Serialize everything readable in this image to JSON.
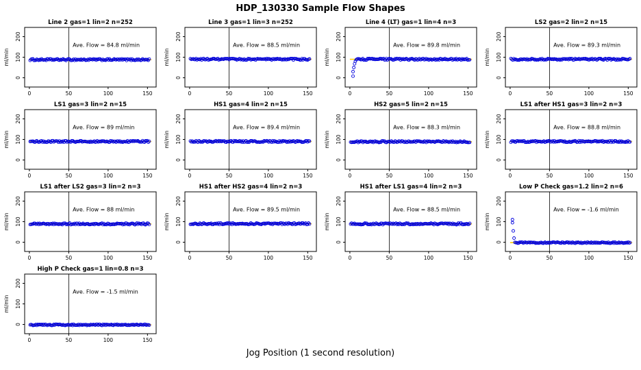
{
  "chart_data": {
    "type": "scatter",
    "title": "HDP_130330  Sample Flow Shapes",
    "xlabel": "Jog Position (1 second resolution)",
    "ylabel": "ml/min",
    "xlim": [
      -6,
      161
    ],
    "ylim": [
      -45,
      245
    ],
    "xticks": [
      0,
      50,
      100,
      150
    ],
    "yticks": [
      0,
      100,
      200
    ],
    "vline_x": 50,
    "point_color": "#0000dd",
    "mean_line_color": "#ffcc00",
    "panels": [
      {
        "title": "Line 2 gas=1 lin=2 n=252",
        "ave_label": "Ave. Flow =  84.8  ml/min",
        "ave_flow": 84.8,
        "flat_y": 88,
        "flat_x_start": 1,
        "flat_x_end": 153,
        "jitter": 4,
        "transient_points": []
      },
      {
        "title": "Line 3 gas=1 lin=3 n=252",
        "ave_label": "Ave. Flow =  88.5  ml/min",
        "ave_flow": 88.5,
        "flat_y": 90,
        "flat_x_start": 1,
        "flat_x_end": 153,
        "jitter": 4,
        "transient_points": []
      },
      {
        "title": "Line 4 (LT) gas=1 lin=4 n=3",
        "ave_label": "Ave. Flow =  89.8  ml/min",
        "ave_flow": 89.8,
        "flat_y": 90,
        "flat_x_start": 8,
        "flat_x_end": 153,
        "jitter": 4,
        "transient_points": [
          [
            4,
            8
          ],
          [
            4,
            30
          ],
          [
            5,
            50
          ],
          [
            6,
            68
          ],
          [
            7,
            80
          ]
        ]
      },
      {
        "title": "LS2 gas=2 lin=2 n=15",
        "ave_label": "Ave. Flow =  89.3  ml/min",
        "ave_flow": 89.3,
        "flat_y": 90,
        "flat_x_start": 1,
        "flat_x_end": 153,
        "jitter": 4,
        "transient_points": []
      },
      {
        "title": "LS1 gas=3 lin=2 n=15",
        "ave_label": "Ave. Flow =  89  ml/min",
        "ave_flow": 89,
        "flat_y": 90,
        "flat_x_start": 1,
        "flat_x_end": 153,
        "jitter": 4,
        "transient_points": []
      },
      {
        "title": "HS1 gas=4 lin=2 n=15",
        "ave_label": "Ave. Flow =  89.4  ml/min",
        "ave_flow": 89.4,
        "flat_y": 90,
        "flat_x_start": 1,
        "flat_x_end": 153,
        "jitter": 4,
        "transient_points": []
      },
      {
        "title": "HS2 gas=5 lin=2 n=15",
        "ave_label": "Ave. Flow =  88.3  ml/min",
        "ave_flow": 88.3,
        "flat_y": 89,
        "flat_x_start": 1,
        "flat_x_end": 153,
        "jitter": 4,
        "transient_points": []
      },
      {
        "title": "LS1 after HS1 gas=3 lin=2 n=3",
        "ave_label": "Ave. Flow =  88.8  ml/min",
        "ave_flow": 88.8,
        "flat_y": 90,
        "flat_x_start": 1,
        "flat_x_end": 153,
        "jitter": 4,
        "transient_points": []
      },
      {
        "title": "LS1 after LS2 gas=3 lin=2 n=3",
        "ave_label": "Ave. Flow =  88  ml/min",
        "ave_flow": 88,
        "flat_y": 89,
        "flat_x_start": 1,
        "flat_x_end": 153,
        "jitter": 4,
        "transient_points": []
      },
      {
        "title": "HS1 after HS2 gas=4 lin=2 n=3",
        "ave_label": "Ave. Flow =  89.5  ml/min",
        "ave_flow": 89.5,
        "flat_y": 90,
        "flat_x_start": 1,
        "flat_x_end": 153,
        "jitter": 4,
        "transient_points": []
      },
      {
        "title": "HS1 after LS1 gas=4 lin=2 n=3",
        "ave_label": "Ave. Flow =  88.5  ml/min",
        "ave_flow": 88.5,
        "flat_y": 89,
        "flat_x_start": 1,
        "flat_x_end": 153,
        "jitter": 4,
        "transient_points": []
      },
      {
        "title": "Low P Check gas=1.2 lin=2 n=6",
        "ave_label": "Ave. Flow =  -1.6  ml/min",
        "ave_flow": -1.6,
        "flat_y": -2,
        "flat_x_start": 6,
        "flat_x_end": 153,
        "jitter": 3,
        "transient_points": [
          [
            3,
            110
          ],
          [
            3,
            95
          ],
          [
            4,
            55
          ],
          [
            5,
            20
          ]
        ]
      },
      {
        "title": "High P Check gas=1 lin=0.8 n=3",
        "ave_label": "Ave. Flow =  -1.5  ml/min",
        "ave_flow": -1.5,
        "flat_y": -2,
        "flat_x_start": 1,
        "flat_x_end": 153,
        "jitter": 3,
        "transient_points": []
      }
    ]
  }
}
